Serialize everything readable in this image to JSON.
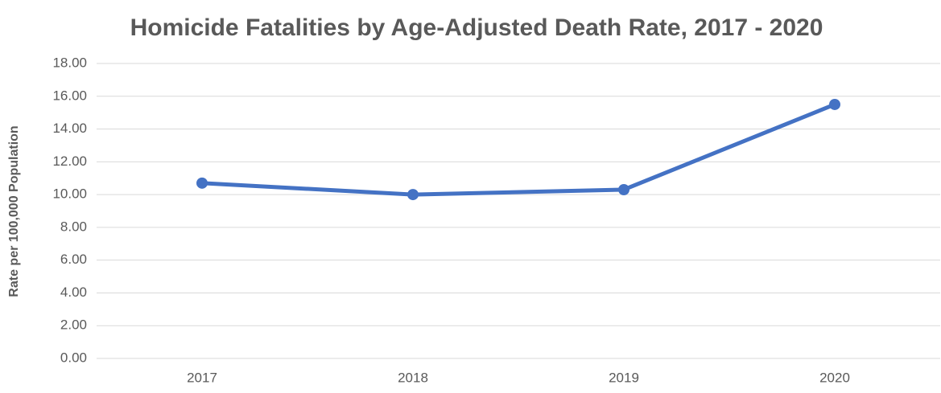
{
  "chart_data": {
    "type": "line",
    "title": "Homicide Fatalities by Age-Adjusted Death Rate, 2017 - 2020",
    "y_label": "Rate per 100,000 Population",
    "categories": [
      "2017",
      "2018",
      "2019",
      "2020"
    ],
    "series": [
      {
        "name": "Rate",
        "color": "#4472c4",
        "values": [
          10.7,
          10.0,
          10.3,
          15.5
        ]
      }
    ],
    "ylim": [
      0,
      18
    ],
    "yticks": [
      {
        "value": 0,
        "label": "0.00"
      },
      {
        "value": 2,
        "label": "2.00"
      },
      {
        "value": 4,
        "label": "4.00"
      },
      {
        "value": 6,
        "label": "6.00"
      },
      {
        "value": 8,
        "label": "8.00"
      },
      {
        "value": 10,
        "label": "10.00"
      },
      {
        "value": 12,
        "label": "12.00"
      },
      {
        "value": 14,
        "label": "14.00"
      },
      {
        "value": 16,
        "label": "16.00"
      },
      {
        "value": 18,
        "label": "18.00"
      }
    ],
    "grid": true
  }
}
